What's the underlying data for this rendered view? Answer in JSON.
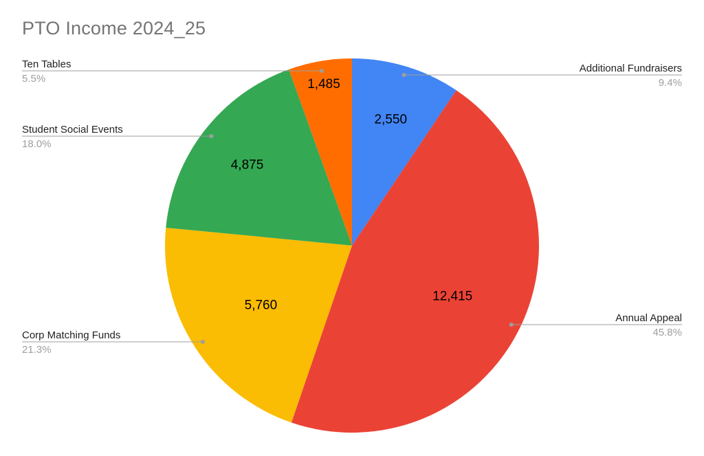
{
  "chart_data": {
    "type": "pie",
    "title": "PTO Income 2024_25",
    "slices": [
      {
        "label": "Additional Fundraisers",
        "value": 2550,
        "value_label": "2,550",
        "percent_label": "9.4%",
        "color": "#4285f4"
      },
      {
        "label": "Annual Appeal",
        "value": 12415,
        "value_label": "12,415",
        "percent_label": "45.8%",
        "color": "#ea4335"
      },
      {
        "label": "Corp Matching Funds",
        "value": 5760,
        "value_label": "5,760",
        "percent_label": "21.3%",
        "color": "#fbbc04"
      },
      {
        "label": "Student Social Events",
        "value": 4875,
        "value_label": "4,875",
        "percent_label": "18.0%",
        "color": "#34a853"
      },
      {
        "label": "Ten Tables",
        "value": 1485,
        "value_label": "1,485",
        "percent_label": "5.5%",
        "color": "#ff6d01"
      }
    ],
    "start_angle": "12 o'clock",
    "direction": "clockwise",
    "legend": "callout labels"
  }
}
